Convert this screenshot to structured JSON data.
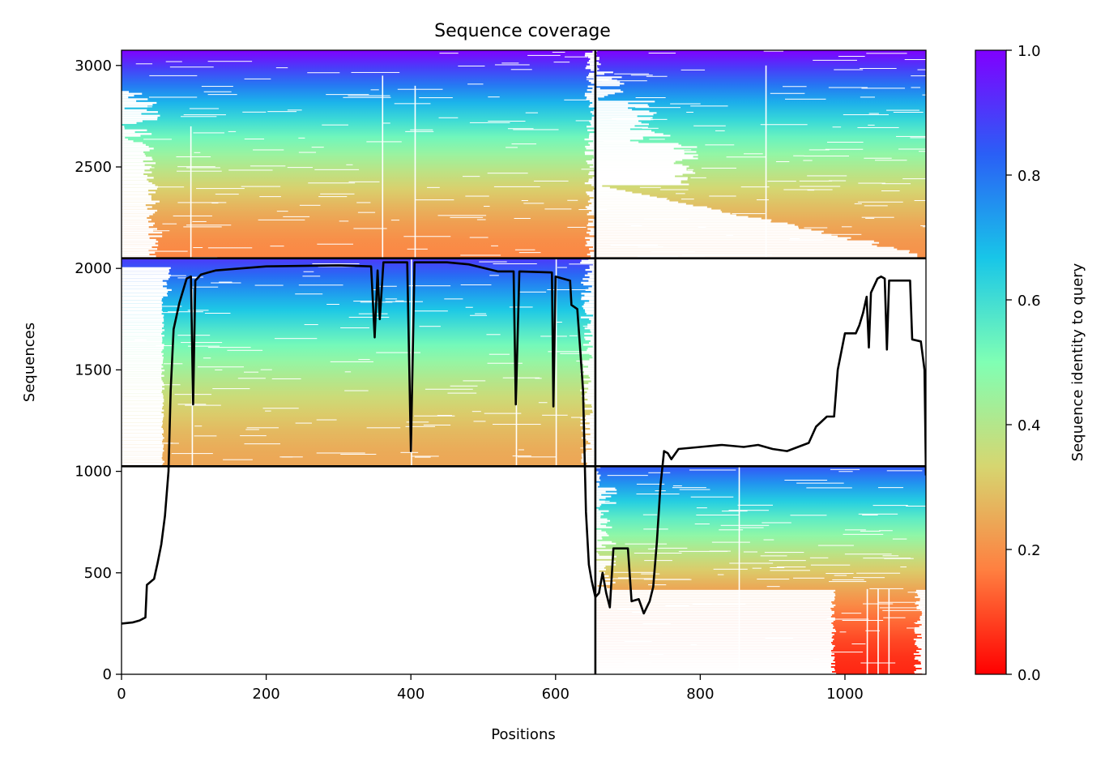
{
  "chart_data": {
    "type": "heatmap",
    "title": "Sequence coverage",
    "xlabel": "Positions",
    "ylabel": "Sequences",
    "xlim": [
      0,
      1112
    ],
    "ylim": [
      0,
      3075
    ],
    "xticks": [
      0,
      200,
      400,
      600,
      800,
      1000
    ],
    "yticks": [
      0,
      500,
      1000,
      1500,
      2000,
      2500,
      3000
    ],
    "colorbar": {
      "label": "Sequence identity to query",
      "ticks": [
        "0.0",
        "0.2",
        "0.4",
        "0.6",
        "0.8",
        "1.0"
      ],
      "range": [
        0,
        1
      ],
      "colormap": "rainbow",
      "stops": [
        "#ff0000",
        "#ff7f40",
        "#d6d670",
        "#80ffb4",
        "#18c6e8",
        "#2a5ff6",
        "#8000ff"
      ]
    },
    "domain_boundaries": {
      "x": 655,
      "y": [
        1025,
        2050
      ]
    },
    "blocks": [
      {
        "name": "upper-left",
        "x": [
          0,
          655
        ],
        "y": [
          2050,
          3075
        ],
        "identity_bottom": 0.18,
        "identity_top": 1.0
      },
      {
        "name": "upper-right",
        "x": [
          655,
          1112
        ],
        "y": [
          2050,
          3075
        ],
        "identity_bottom": 0.2,
        "identity_top": 1.0
      },
      {
        "name": "middle-left",
        "x": [
          0,
          655
        ],
        "y": [
          1025,
          2050
        ],
        "identity_bottom": 0.24,
        "identity_top": 0.9
      },
      {
        "name": "lower-right",
        "x": [
          655,
          1112
        ],
        "y": [
          0,
          1025
        ],
        "identity_bottom": 0.05,
        "identity_top": 0.85
      }
    ],
    "coverage_line": {
      "color": "#000000",
      "points": [
        [
          0,
          250
        ],
        [
          15,
          255
        ],
        [
          25,
          265
        ],
        [
          33,
          280
        ],
        [
          35,
          440
        ],
        [
          45,
          470
        ],
        [
          50,
          550
        ],
        [
          55,
          640
        ],
        [
          60,
          780
        ],
        [
          65,
          1000
        ],
        [
          68,
          1400
        ],
        [
          72,
          1700
        ],
        [
          80,
          1830
        ],
        [
          90,
          1950
        ],
        [
          96,
          1960
        ],
        [
          99,
          1330
        ],
        [
          102,
          1940
        ],
        [
          110,
          1970
        ],
        [
          130,
          1990
        ],
        [
          200,
          2010
        ],
        [
          300,
          2015
        ],
        [
          345,
          2010
        ],
        [
          350,
          1660
        ],
        [
          354,
          1990
        ],
        [
          357,
          1750
        ],
        [
          362,
          2030
        ],
        [
          395,
          2030
        ],
        [
          400,
          1100
        ],
        [
          405,
          2030
        ],
        [
          450,
          2030
        ],
        [
          480,
          2020
        ],
        [
          520,
          1985
        ],
        [
          542,
          1985
        ],
        [
          545,
          1330
        ],
        [
          550,
          1985
        ],
        [
          595,
          1980
        ],
        [
          597,
          1320
        ],
        [
          600,
          1960
        ],
        [
          620,
          1940
        ],
        [
          622,
          1820
        ],
        [
          630,
          1800
        ],
        [
          634,
          1600
        ],
        [
          638,
          1400
        ],
        [
          642,
          800
        ],
        [
          646,
          540
        ],
        [
          650,
          460
        ],
        [
          655,
          380
        ],
        [
          660,
          400
        ],
        [
          665,
          500
        ],
        [
          670,
          400
        ],
        [
          675,
          330
        ],
        [
          680,
          620
        ],
        [
          700,
          620
        ],
        [
          705,
          360
        ],
        [
          715,
          370
        ],
        [
          722,
          300
        ],
        [
          730,
          360
        ],
        [
          735,
          430
        ],
        [
          740,
          650
        ],
        [
          745,
          930
        ],
        [
          750,
          1100
        ],
        [
          755,
          1090
        ],
        [
          760,
          1060
        ],
        [
          770,
          1110
        ],
        [
          800,
          1120
        ],
        [
          830,
          1130
        ],
        [
          860,
          1120
        ],
        [
          880,
          1130
        ],
        [
          900,
          1110
        ],
        [
          920,
          1100
        ],
        [
          950,
          1140
        ],
        [
          960,
          1220
        ],
        [
          975,
          1270
        ],
        [
          985,
          1270
        ],
        [
          990,
          1500
        ],
        [
          1000,
          1680
        ],
        [
          1015,
          1680
        ],
        [
          1020,
          1720
        ],
        [
          1025,
          1780
        ],
        [
          1030,
          1860
        ],
        [
          1033,
          1610
        ],
        [
          1036,
          1880
        ],
        [
          1045,
          1950
        ],
        [
          1050,
          1960
        ],
        [
          1055,
          1950
        ],
        [
          1058,
          1600
        ],
        [
          1061,
          1940
        ],
        [
          1090,
          1940
        ],
        [
          1093,
          1650
        ],
        [
          1105,
          1640
        ],
        [
          1110,
          1500
        ],
        [
          1112,
          980
        ]
      ]
    }
  }
}
